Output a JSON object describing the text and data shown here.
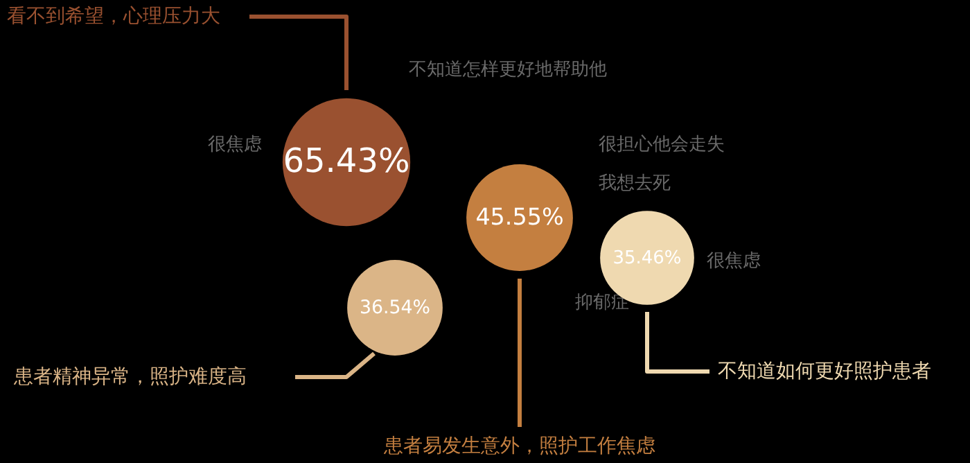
{
  "chart_data": {
    "type": "other",
    "categories": [
      "看不到希望，心理压力大",
      "患者易发生意外，照护工作焦虑",
      "患者精神异常，照护难度高",
      "不知道如何更好照护患者"
    ],
    "values": [
      65.43,
      45.55,
      36.54,
      35.46
    ],
    "value_labels": [
      "65.43%",
      "45.55%",
      "36.54%",
      "35.46%"
    ],
    "colors": [
      "#9a5130",
      "#c47f40",
      "#dbb587",
      "#efd9b0"
    ],
    "annotations": [
      "不知道怎样更好地帮助他",
      "很焦虑",
      "很担心他会走失",
      "我想去死",
      "抑郁症",
      "很焦虑"
    ]
  }
}
